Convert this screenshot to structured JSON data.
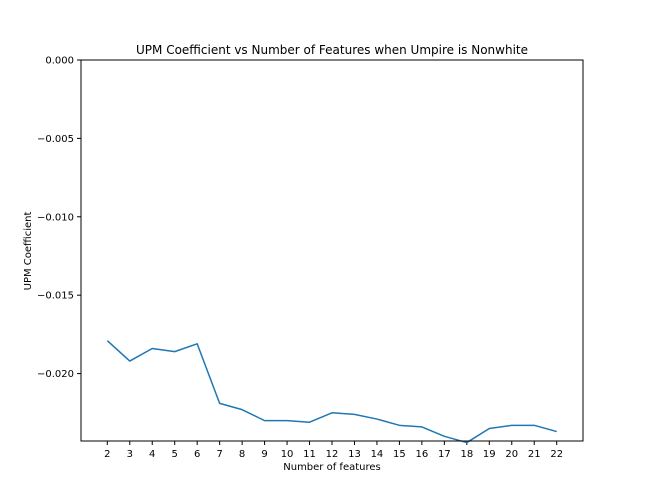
{
  "chart_data": {
    "type": "line",
    "title": "UPM Coefficient vs Number of Features when Umpire is Nonwhite",
    "xlabel": "Number of features",
    "ylabel": "UPM Coefficient",
    "x": [
      2,
      3,
      4,
      5,
      6,
      7,
      8,
      9,
      10,
      11,
      12,
      13,
      14,
      15,
      16,
      17,
      18,
      19,
      20,
      21,
      22
    ],
    "series": [
      {
        "values": [
          -0.0179,
          -0.0192,
          -0.0184,
          -0.0186,
          -0.0181,
          -0.0219,
          -0.0223,
          -0.023,
          -0.023,
          -0.0231,
          -0.0225,
          -0.0226,
          -0.0229,
          -0.0233,
          -0.0234,
          -0.024,
          -0.0244,
          -0.0235,
          -0.0233,
          -0.0233,
          -0.0237
        ],
        "color": "#1f77b4"
      }
    ],
    "xlim": [
      0.83,
      23.17
    ],
    "ylim": [
      -0.0243,
      0.0
    ],
    "yticks": [
      "0.000",
      "−0.005",
      "−0.010",
      "−0.015",
      "−0.020"
    ],
    "ytick_values": [
      0.0,
      -0.005,
      -0.01,
      -0.015,
      -0.02
    ],
    "xticks": [
      "2",
      "3",
      "4",
      "5",
      "6",
      "7",
      "8",
      "9",
      "10",
      "11",
      "12",
      "13",
      "14",
      "15",
      "16",
      "17",
      "18",
      "19",
      "20",
      "21",
      "22"
    ],
    "grid": false,
    "legend": "none"
  }
}
